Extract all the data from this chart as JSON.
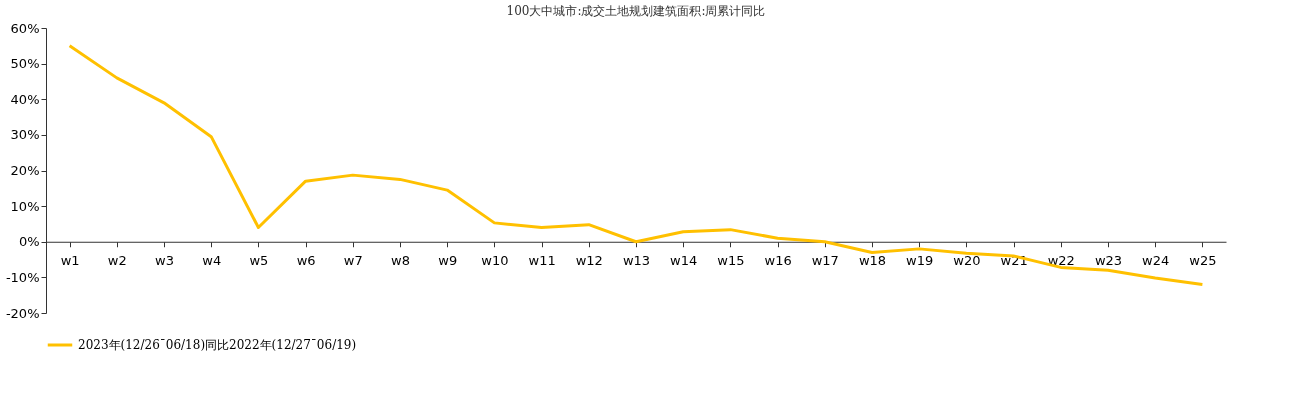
{
  "chart_data": {
    "type": "line",
    "title": "100大中城市:成交土地规划建筑面积:周累计同比",
    "categories": [
      "w1",
      "w2",
      "w3",
      "w4",
      "w5",
      "w6",
      "w7",
      "w8",
      "w9",
      "w10",
      "w11",
      "w12",
      "w13",
      "w14",
      "w15",
      "w16",
      "w17",
      "w18",
      "w19",
      "w20",
      "w21",
      "w22",
      "w23",
      "w24",
      "w25"
    ],
    "series": [
      {
        "name": "2023年(12/26¯06/18)同比2022年(12/27¯06/19)",
        "color": "#ffc000",
        "values": [
          55,
          46,
          39,
          29.5,
          4,
          17,
          18.7,
          17.5,
          14.5,
          5.3,
          4,
          4.8,
          0,
          2.8,
          3.4,
          1,
          0,
          -3,
          -2,
          -3.2,
          -4,
          -7.2,
          -8,
          -10.2,
          -12
        ]
      }
    ],
    "ylim": [
      -20,
      60
    ],
    "yticks": [
      {
        "value": -20,
        "label": "-20%"
      },
      {
        "value": -10,
        "label": "-10%"
      },
      {
        "value": 0,
        "label": "0%"
      },
      {
        "value": 10,
        "label": "10%"
      },
      {
        "value": 20,
        "label": "20%"
      },
      {
        "value": 30,
        "label": "30%"
      },
      {
        "value": 40,
        "label": "40%"
      },
      {
        "value": 50,
        "label": "50%"
      },
      {
        "value": 60,
        "label": "60%"
      }
    ],
    "grid": false,
    "legend": "bottom",
    "marker": "none",
    "line_style": "solid"
  }
}
